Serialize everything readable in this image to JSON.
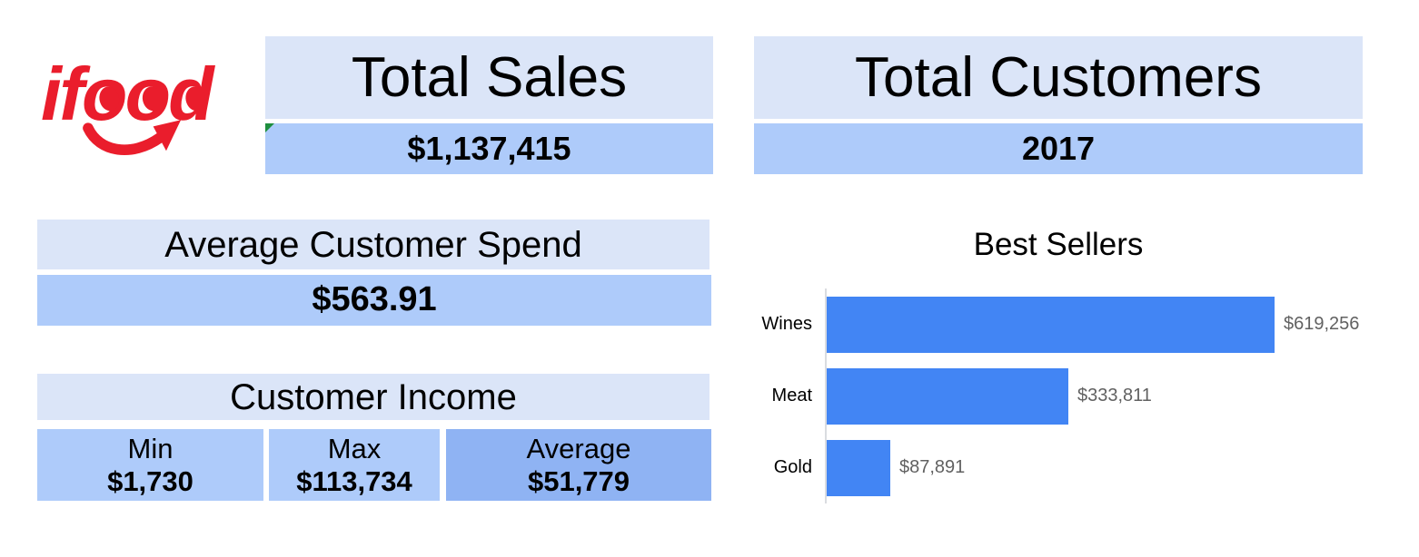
{
  "brand": {
    "logo_text": "ifood",
    "logo_color": "#ea1d2c"
  },
  "cards": {
    "total_sales": {
      "title": "Total Sales",
      "value": "$1,137,415",
      "has_note": true
    },
    "total_customers": {
      "title": "Total Customers",
      "value": "2017"
    },
    "average_customer_spend": {
      "title": "Average Customer Spend",
      "value": "$563.91"
    },
    "customer_income": {
      "title": "Customer Income",
      "stats": [
        {
          "label": "Min",
          "value": "$1,730",
          "highlight": false
        },
        {
          "label": "Max",
          "value": "$113,734",
          "highlight": false
        },
        {
          "label": "Average",
          "value": "$51,779",
          "highlight": true
        }
      ]
    }
  },
  "chart_data": {
    "type": "bar",
    "orientation": "horizontal",
    "title": "Best Sellers",
    "categories": [
      "Wines",
      "Meat",
      "Gold"
    ],
    "values": [
      619256,
      333811,
      87891
    ],
    "value_labels": [
      "$619,256",
      "$333,811",
      "$87,891"
    ],
    "xlim": [
      0,
      650000
    ],
    "grid": false,
    "legend": false,
    "bar_color": "#4285f4",
    "label_color": "#616161"
  },
  "colors": {
    "header_bg": "#dbe5f8",
    "value_bg": "#aecbfa",
    "highlight_bg": "#8fb3f3",
    "bar": "#4285f4",
    "axis": "#dadce0",
    "chart_label": "#616161",
    "brand_red": "#ea1d2c",
    "note_green": "#1e8e3e"
  }
}
